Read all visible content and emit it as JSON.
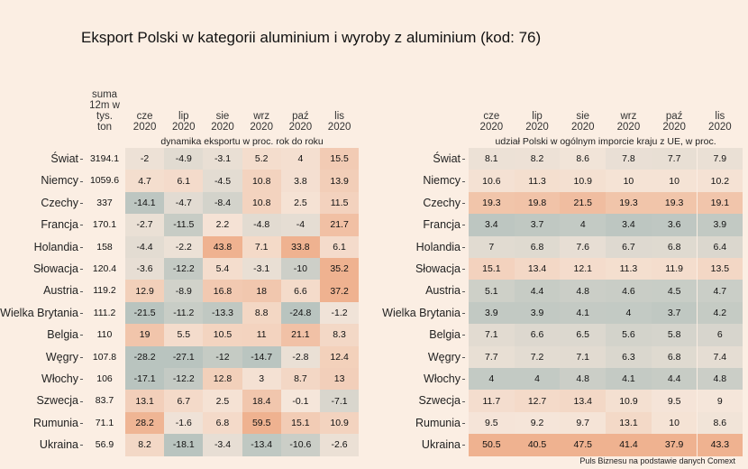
{
  "title": "Eksport Polski w kategorii aluminium i wyroby z aluminium (kod: 76)",
  "source": "Puls Biznesu na podstawie danych Comext",
  "sum_header": "suma\n12m w\ntys.\nton",
  "colors": {
    "background": "#fbeee3",
    "low": "#b9c4bf",
    "mid": "#f5e6da",
    "high": "#efb290"
  },
  "chart_data": [
    {
      "type": "heatmap",
      "title": "dynamika eksportu w proc. rok do roku",
      "columns": [
        "cze\n2020",
        "lip\n2020",
        "sie\n2020",
        "wrz\n2020",
        "paź\n2020",
        "lis\n2020"
      ],
      "rows": [
        "Świat",
        "Niemcy",
        "Czechy",
        "Francja",
        "Holandia",
        "Słowacja",
        "Austria",
        "Wielka Brytania",
        "Belgia",
        "Węgry",
        "Włochy",
        "Szwecja",
        "Rumunia",
        "Ukraina"
      ],
      "sum_12m": [
        "3194.1",
        "1059.6",
        "337",
        "170.1",
        "158",
        "120.4",
        "119.2",
        "111.2",
        "110",
        "107.8",
        "106",
        "83.7",
        "71.1",
        "56.9"
      ],
      "values": [
        [
          -2,
          -4.9,
          -3.1,
          5.2,
          4,
          15.5
        ],
        [
          4.7,
          6.1,
          -4.5,
          10.8,
          3.8,
          13.9
        ],
        [
          -14.1,
          -4.7,
          -8.4,
          10.8,
          2.5,
          11.5
        ],
        [
          -2.7,
          -11.5,
          2.2,
          -4.8,
          -4,
          21.7
        ],
        [
          -4.4,
          -2.2,
          43.8,
          7.1,
          33.8,
          6.1
        ],
        [
          -3.6,
          -12.2,
          5.4,
          -3.1,
          -10,
          35.2
        ],
        [
          12.9,
          -8.9,
          16.8,
          18,
          6.6,
          37.2
        ],
        [
          -21.5,
          -11.2,
          -13.3,
          8.8,
          -24.8,
          -1.2
        ],
        [
          19,
          5.5,
          10.5,
          11,
          21.1,
          8.3
        ],
        [
          -28.2,
          -27.1,
          -12,
          -14.7,
          -2.8,
          12.4
        ],
        [
          -17.1,
          -12.2,
          12.8,
          3,
          8.7,
          13
        ],
        [
          13.1,
          6.7,
          2.5,
          18.4,
          -0.1,
          -7.1
        ],
        [
          28.2,
          -1.6,
          6.8,
          59.5,
          15.1,
          10.9
        ],
        [
          8.2,
          -18.1,
          -3.4,
          -13.4,
          -10.6,
          -2.6
        ]
      ]
    },
    {
      "type": "heatmap",
      "title": "udział Polski w ogólnym imporcie kraju z UE, w proc.",
      "columns": [
        "cze\n2020",
        "lip\n2020",
        "sie\n2020",
        "wrz\n2020",
        "paź\n2020",
        "lis\n2020"
      ],
      "rows": [
        "Świat",
        "Niemcy",
        "Czechy",
        "Francja",
        "Holandia",
        "Słowacja",
        "Austria",
        "Wielka Brytania",
        "Belgia",
        "Węgry",
        "Włochy",
        "Szwecja",
        "Rumunia",
        "Ukraina"
      ],
      "values": [
        [
          8.1,
          8.2,
          8.6,
          7.8,
          7.7,
          7.9
        ],
        [
          10.6,
          11.3,
          10.9,
          10,
          10,
          10.2
        ],
        [
          19.3,
          19.8,
          21.5,
          19.3,
          19.3,
          19.1
        ],
        [
          3.4,
          3.7,
          4,
          3.4,
          3.6,
          3.9
        ],
        [
          7,
          6.8,
          7.6,
          6.7,
          6.8,
          6.4
        ],
        [
          15.1,
          13.4,
          12.1,
          11.3,
          11.9,
          13.5
        ],
        [
          5.1,
          4.4,
          4.8,
          4.6,
          4.5,
          4.7
        ],
        [
          3.9,
          3.9,
          4.1,
          4,
          3.7,
          4.2
        ],
        [
          7.1,
          6.6,
          6.5,
          5.6,
          5.8,
          6
        ],
        [
          7.7,
          7.2,
          7.1,
          6.3,
          6.8,
          7.4
        ],
        [
          4,
          4,
          4.8,
          4.1,
          4.4,
          4.8
        ],
        [
          11.7,
          12.7,
          13.4,
          10.9,
          9.5,
          9
        ],
        [
          9.5,
          9.2,
          9.7,
          13.1,
          10,
          8.6
        ],
        [
          50.5,
          40.5,
          47.5,
          41.4,
          37.9,
          43.3
        ]
      ]
    }
  ]
}
